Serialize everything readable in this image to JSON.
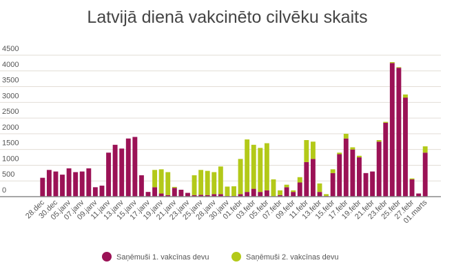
{
  "chart_data": {
    "type": "bar",
    "stacked": true,
    "title": "Latvijā dienā vakcinēto cilvēku skaits",
    "categories": [
      "28.dec",
      null,
      "30.dec",
      null,
      "05.janv",
      null,
      "07.janv",
      null,
      "09.janv",
      null,
      "11.janv",
      null,
      "13.janv",
      null,
      "15.janv",
      null,
      "17.janv",
      null,
      "19.janv",
      null,
      "21.janv",
      null,
      "23.janv",
      null,
      "25.janv",
      null,
      "28.janv",
      null,
      "30.janv",
      null,
      "01.febr",
      null,
      "03.febr",
      null,
      "05.febr",
      null,
      "07.febr",
      null,
      "09.febr",
      null,
      "11.febr",
      null,
      "13.febr",
      null,
      "15.febr",
      null,
      "17.febr",
      null,
      "19.febr",
      null,
      "21.febr",
      null,
      "23.febr",
      null,
      "25.febr",
      null,
      "27.febr",
      null,
      "01.marts"
    ],
    "series": [
      {
        "name": "Saņēmuši 1. vakcīnas devu",
        "color": "#9b1256",
        "values": [
          600,
          850,
          800,
          700,
          900,
          780,
          800,
          900,
          300,
          350,
          1400,
          1650,
          1530,
          1850,
          1900,
          680,
          150,
          300,
          100,
          50,
          280,
          220,
          120,
          50,
          60,
          50,
          80,
          80,
          20,
          20,
          80,
          150,
          250,
          150,
          200,
          0,
          50,
          300,
          150,
          450,
          1100,
          1200,
          150,
          20,
          750,
          1350,
          1850,
          1500,
          1250,
          750,
          800,
          1750,
          2350,
          4250,
          4100,
          3150,
          550,
          100,
          1400
        ]
      },
      {
        "name": "Saņēmuši 2. vakcīnas devu",
        "color": "#b3c919",
        "values": [
          0,
          0,
          0,
          0,
          0,
          0,
          0,
          0,
          0,
          0,
          0,
          0,
          0,
          0,
          0,
          0,
          0,
          550,
          770,
          730,
          30,
          0,
          0,
          630,
          790,
          770,
          700,
          880,
          300,
          310,
          1120,
          1670,
          1400,
          1400,
          1500,
          550,
          150,
          80,
          50,
          170,
          700,
          550,
          270,
          60,
          120,
          50,
          150,
          70,
          50,
          0,
          0,
          50,
          30,
          30,
          20,
          100,
          30,
          0,
          200
        ]
      }
    ],
    "ylim": [
      0,
      4500
    ],
    "yticks": [
      0,
      500,
      1000,
      1500,
      2000,
      2500,
      3000,
      3500,
      4000,
      4500
    ],
    "grid": true,
    "legend": "bottom"
  }
}
